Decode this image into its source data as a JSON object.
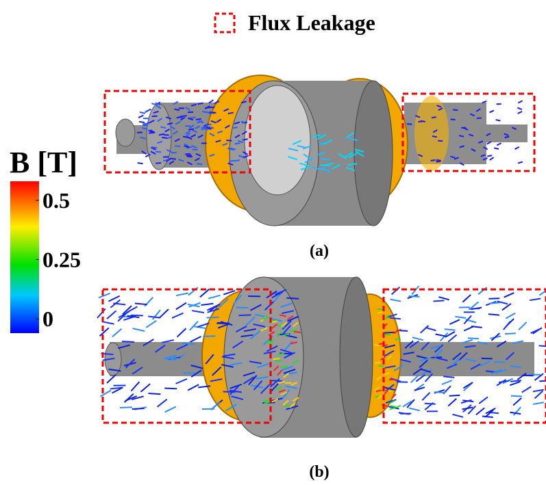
{
  "legend": {
    "label": "Flux Leakage"
  },
  "colorbar": {
    "title": "B [T]",
    "lim": [
      -0.06,
      0.58
    ],
    "ticks": [
      0,
      0.25,
      0.5
    ]
  },
  "panels": [
    {
      "label": "(a)"
    },
    {
      "label": "(b)"
    }
  ]
}
